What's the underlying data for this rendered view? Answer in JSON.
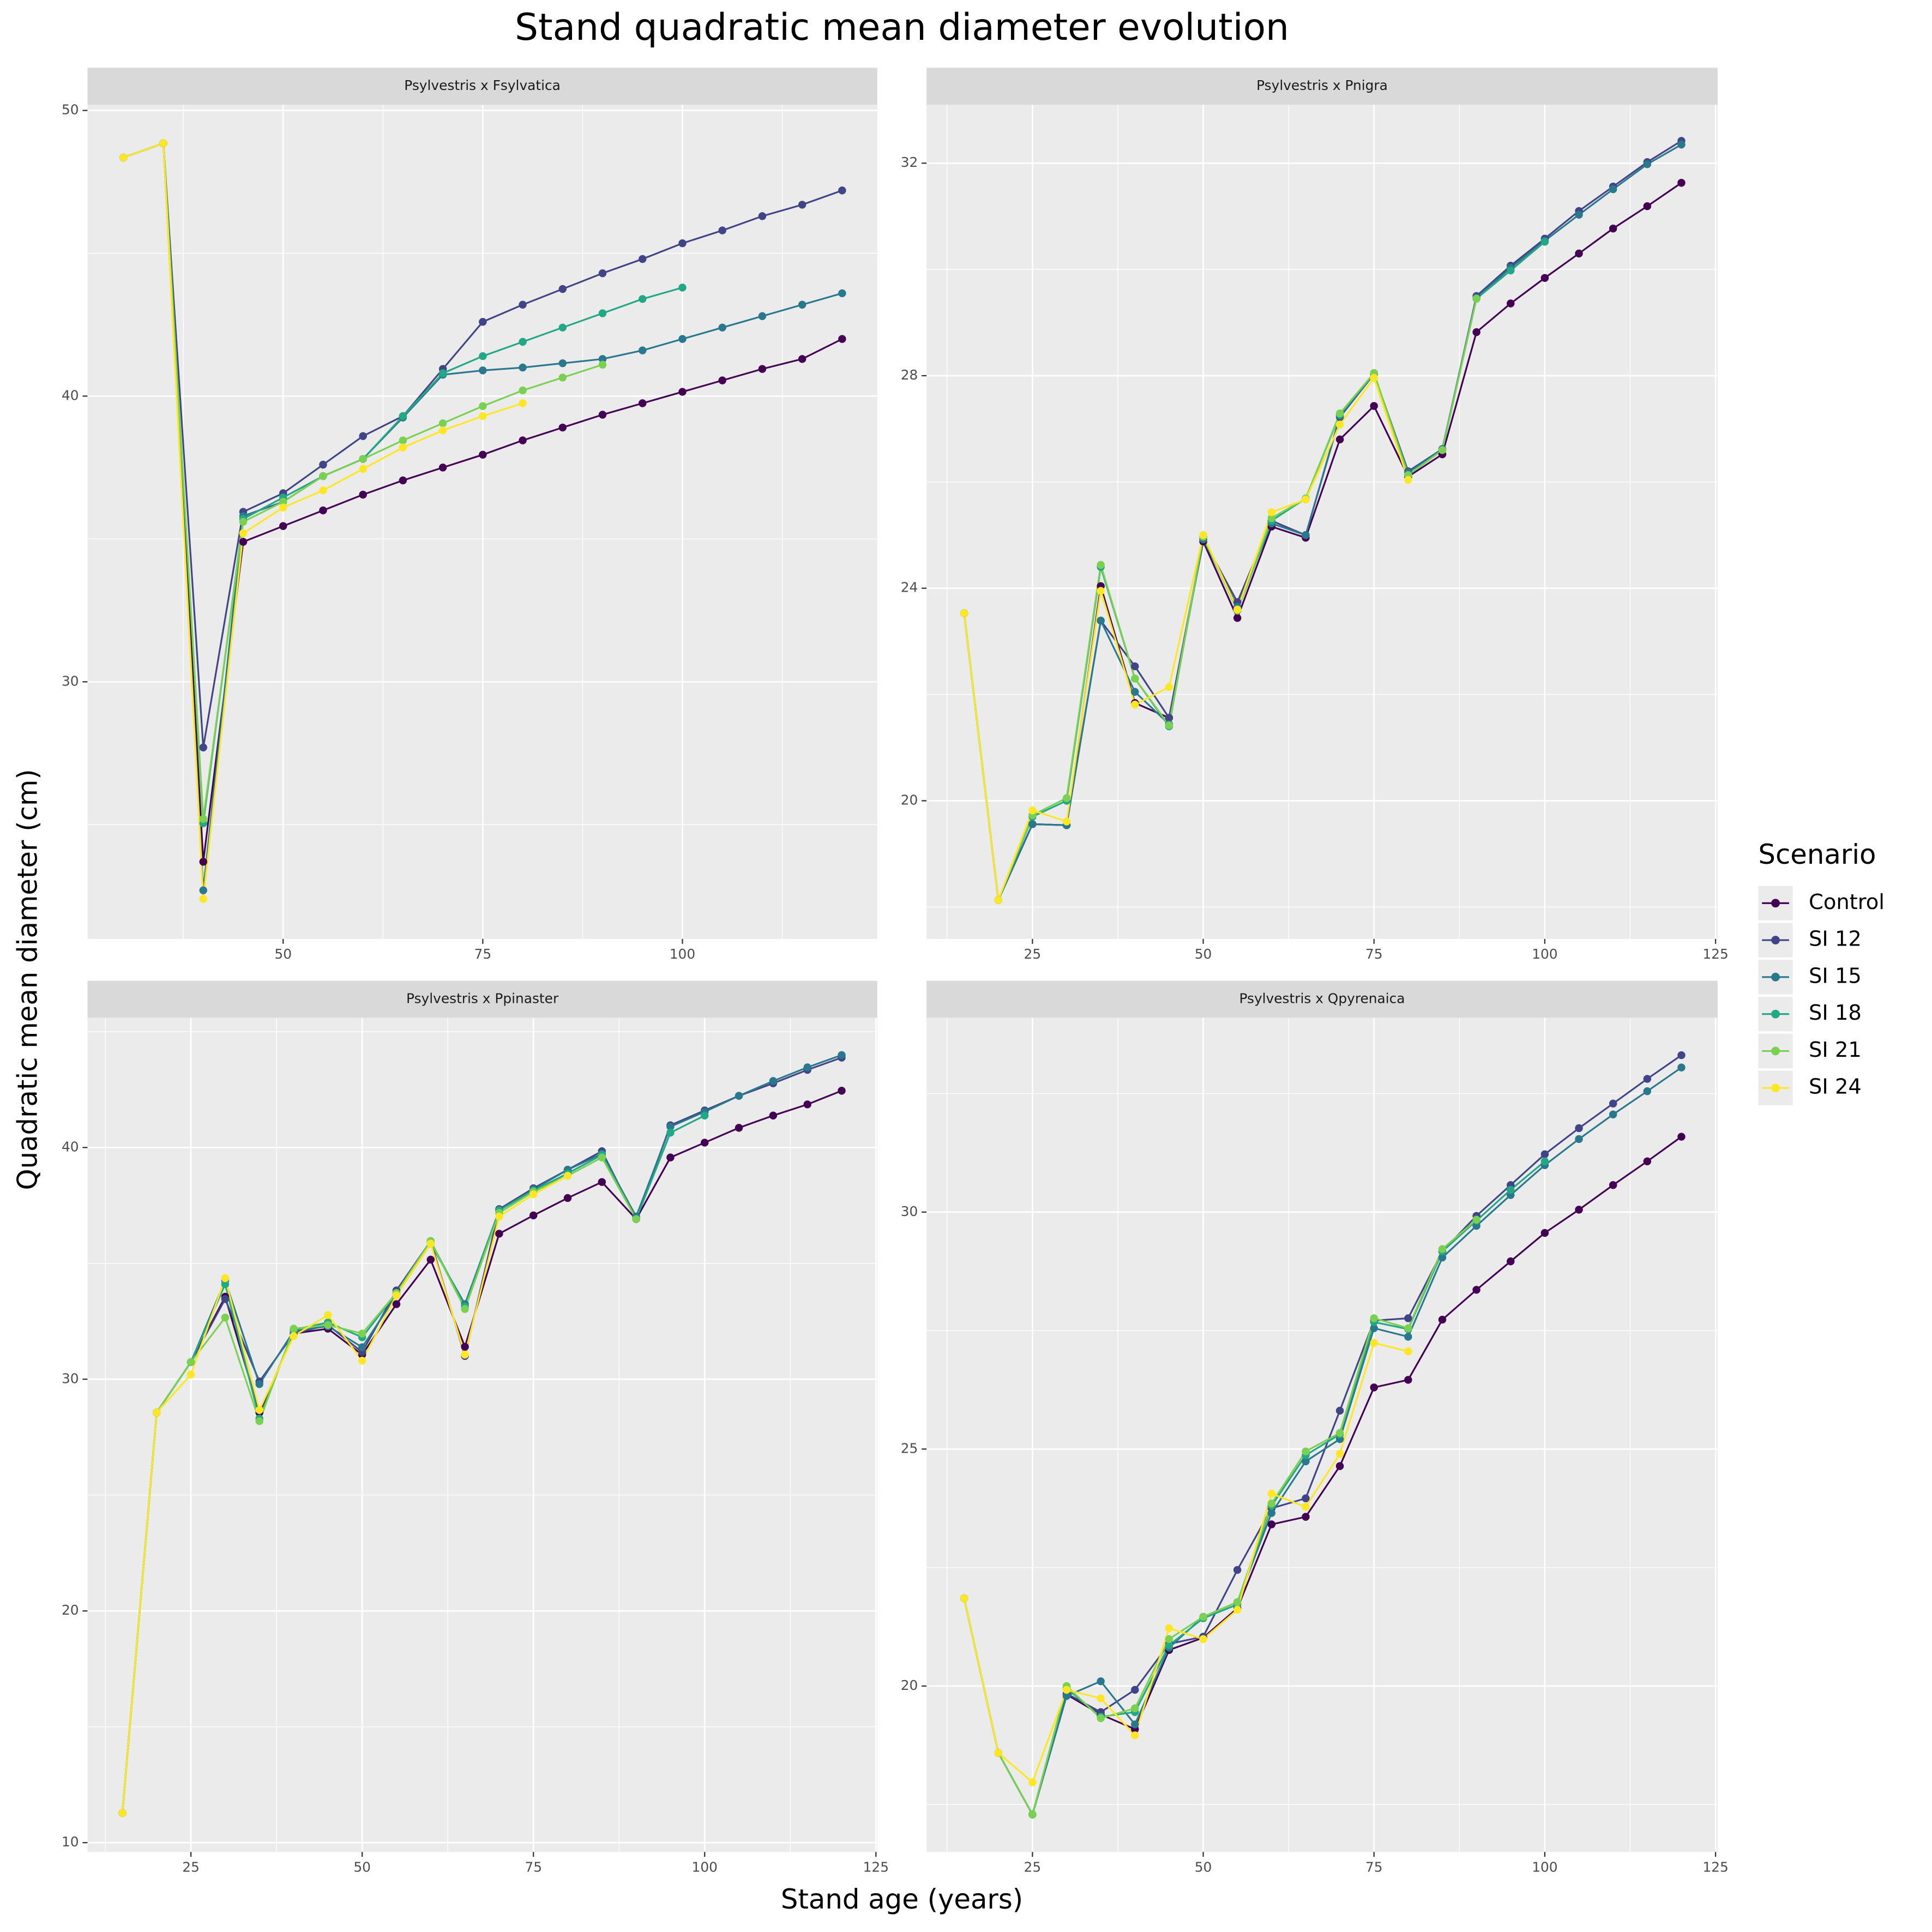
{
  "title": "Stand quadratic mean diameter evolution",
  "xlabel": "Stand age (years)",
  "ylabel": "Quadratic mean diameter (cm)",
  "legend_title": "Scenario",
  "chart_data": [
    {
      "type": "line",
      "title": "Psylvestris x Fsylvatica",
      "x": [
        30,
        35,
        40,
        45,
        50,
        55,
        60,
        65,
        70,
        75,
        80,
        85,
        90,
        95,
        100,
        105,
        110,
        115,
        120
      ],
      "xlim": [
        25.5,
        124.4
      ],
      "ylim": [
        21.0,
        50.2
      ],
      "xticks": [
        50,
        75,
        100
      ],
      "yticks": [
        30,
        40,
        50
      ],
      "grid": true,
      "series": [
        {
          "name": "Control",
          "color": "#440154",
          "values": [
            48.35,
            48.85,
            23.7,
            34.9,
            35.45,
            36.0,
            36.55,
            37.05,
            37.5,
            37.95,
            38.45,
            38.9,
            39.35,
            39.75,
            40.15,
            40.55,
            40.95,
            41.3,
            42.0
          ]
        },
        {
          "name": "SI 12",
          "color": "#414487",
          "values": [
            48.35,
            48.85,
            27.7,
            35.95,
            36.6,
            37.6,
            38.6,
            39.3,
            40.95,
            42.6,
            43.2,
            43.75,
            44.3,
            44.8,
            45.35,
            45.8,
            46.3,
            46.7,
            47.2
          ]
        },
        {
          "name": "SI 15",
          "color": "#2A788E",
          "values": [
            48.35,
            48.85,
            22.7,
            35.8,
            36.3,
            37.2,
            37.8,
            39.25,
            40.75,
            40.9,
            41.0,
            41.15,
            41.3,
            41.6,
            42.0,
            42.4,
            42.8,
            43.2,
            43.6
          ]
        },
        {
          "name": "SI 18",
          "color": "#22A884",
          "values": [
            48.35,
            48.85,
            25.05,
            35.7,
            36.45,
            37.2,
            37.8,
            39.3,
            40.8,
            41.4,
            41.9,
            42.4,
            42.9,
            43.4,
            43.8,
            null,
            null,
            null,
            null
          ]
        },
        {
          "name": "SI 21",
          "color": "#7AD151",
          "values": [
            48.35,
            48.85,
            25.2,
            35.6,
            36.3,
            37.2,
            37.8,
            38.45,
            39.05,
            39.65,
            40.2,
            40.65,
            41.1,
            null,
            null,
            null,
            null,
            null,
            null
          ]
        },
        {
          "name": "SI 24",
          "color": "#FDE725",
          "values": [
            48.35,
            48.85,
            22.4,
            35.2,
            36.1,
            36.7,
            37.45,
            38.2,
            38.8,
            39.3,
            39.75,
            null,
            null,
            null,
            null,
            null,
            null,
            null,
            null
          ]
        }
      ]
    },
    {
      "type": "line",
      "title": "Psylvestris x Pnigra",
      "x": [
        15,
        20,
        25,
        30,
        35,
        40,
        45,
        50,
        55,
        60,
        65,
        70,
        75,
        80,
        85,
        90,
        95,
        100,
        105,
        110,
        115,
        120
      ],
      "xlim": [
        9.5,
        125.3
      ],
      "ylim": [
        17.4,
        33.1
      ],
      "xticks": [
        25,
        50,
        75,
        100,
        125
      ],
      "yticks": [
        20,
        24,
        28,
        32
      ],
      "grid": true,
      "series": [
        {
          "name": "Control",
          "color": "#440154",
          "values": [
            23.53,
            18.13,
            19.56,
            19.54,
            24.04,
            21.84,
            21.56,
            24.88,
            23.44,
            25.16,
            24.95,
            26.8,
            27.43,
            26.1,
            26.52,
            28.82,
            29.36,
            29.84,
            30.3,
            30.77,
            31.19,
            31.63
          ]
        },
        {
          "name": "SI 12",
          "color": "#414487",
          "values": [
            23.53,
            18.13,
            19.56,
            19.54,
            23.39,
            22.53,
            21.56,
            24.92,
            23.74,
            25.27,
            25.0,
            27.22,
            28.03,
            26.2,
            26.62,
            29.5,
            30.07,
            30.58,
            31.1,
            31.56,
            32.02,
            32.42
          ]
        },
        {
          "name": "SI 15",
          "color": "#2A788E",
          "values": [
            23.53,
            18.13,
            19.56,
            19.54,
            23.39,
            22.05,
            21.44,
            24.92,
            23.65,
            25.22,
            25.0,
            27.24,
            28.03,
            26.18,
            26.62,
            29.47,
            30.03,
            30.54,
            31.03,
            31.51,
            31.98,
            32.35
          ]
        },
        {
          "name": "SI 18",
          "color": "#22A884",
          "values": [
            23.53,
            18.13,
            19.7,
            20.0,
            24.4,
            22.3,
            21.4,
            24.97,
            23.58,
            25.27,
            25.69,
            27.27,
            28.05,
            26.13,
            26.6,
            29.45,
            29.98,
            30.52,
            null,
            null,
            null,
            null
          ]
        },
        {
          "name": "SI 21",
          "color": "#7AD151",
          "values": [
            23.53,
            18.13,
            19.73,
            20.05,
            24.44,
            22.3,
            21.42,
            24.97,
            23.58,
            25.32,
            25.69,
            27.29,
            28.05,
            26.13,
            26.6,
            29.45,
            null,
            null,
            null,
            null,
            null,
            null
          ]
        },
        {
          "name": "SI 24",
          "color": "#FDE725",
          "values": [
            23.53,
            18.13,
            19.82,
            19.61,
            23.95,
            21.81,
            22.14,
            25.0,
            23.6,
            25.43,
            25.67,
            27.08,
            27.96,
            26.04,
            null,
            null,
            null,
            null,
            null,
            null,
            null,
            null
          ]
        }
      ]
    },
    {
      "type": "line",
      "title": "Psylvestris x Ppinaster",
      "x": [
        15,
        20,
        25,
        30,
        35,
        40,
        45,
        50,
        55,
        60,
        65,
        70,
        75,
        80,
        85,
        90,
        95,
        100,
        105,
        110,
        115,
        120
      ],
      "xlim": [
        9.9,
        125.2
      ],
      "ylim": [
        9.6,
        45.6
      ],
      "xticks": [
        25,
        50,
        75,
        100,
        125
      ],
      "yticks": [
        10,
        20,
        30,
        40
      ],
      "grid": true,
      "series": [
        {
          "name": "Control",
          "color": "#440154",
          "values": [
            11.28,
            28.56,
            30.74,
            33.56,
            28.56,
            31.97,
            32.18,
            31.06,
            33.24,
            35.16,
            31.4,
            36.28,
            37.07,
            37.82,
            38.51,
            36.91,
            39.57,
            40.21,
            40.85,
            41.38,
            41.86,
            42.45
          ]
        },
        {
          "name": "SI 12",
          "color": "#414487",
          "values": [
            11.28,
            28.56,
            30.74,
            33.46,
            29.9,
            31.97,
            32.34,
            31.17,
            33.83,
            35.96,
            31.0,
            37.34,
            38.24,
            39.04,
            39.84,
            36.91,
            40.96,
            41.6,
            42.23,
            42.77,
            43.35,
            43.88
          ]
        },
        {
          "name": "SI 15",
          "color": "#2A788E",
          "values": [
            11.28,
            28.56,
            30.74,
            34.26,
            29.79,
            32.07,
            32.29,
            31.38,
            33.62,
            35.85,
            33.24,
            37.29,
            38.19,
            39.04,
            39.73,
            37.02,
            40.9,
            41.54,
            42.23,
            42.87,
            43.46,
            43.99
          ]
        },
        {
          "name": "SI 18",
          "color": "#22A884",
          "values": [
            11.28,
            28.56,
            30.74,
            34.1,
            28.3,
            32.13,
            32.45,
            31.81,
            33.72,
            35.96,
            33.14,
            37.29,
            38.14,
            38.88,
            39.68,
            36.91,
            40.64,
            41.38,
            null,
            null,
            null,
            null
          ]
        },
        {
          "name": "SI 21",
          "color": "#7AD151",
          "values": [
            11.28,
            28.56,
            30.74,
            32.66,
            28.19,
            32.18,
            32.34,
            31.97,
            33.72,
            35.96,
            33.03,
            37.18,
            38.09,
            38.78,
            39.57,
            36.91,
            null,
            null,
            null,
            null,
            null,
            null
          ]
        },
        {
          "name": "SI 24",
          "color": "#FDE725",
          "values": [
            11.28,
            28.56,
            30.2,
            34.36,
            28.67,
            31.86,
            32.77,
            30.8,
            33.62,
            35.85,
            31.06,
            37.02,
            37.98,
            38.78,
            null,
            null,
            null,
            null,
            null,
            null,
            null,
            null
          ]
        }
      ]
    },
    {
      "type": "line",
      "title": "Psylvestris x Qpyrenaica",
      "x": [
        15,
        20,
        25,
        30,
        35,
        40,
        45,
        50,
        55,
        60,
        65,
        70,
        75,
        80,
        85,
        90,
        95,
        100,
        105,
        110,
        115,
        120
      ],
      "xlim": [
        9.5,
        125.3
      ],
      "ylim": [
        16.5,
        34.1
      ],
      "xticks": [
        25,
        50,
        75,
        100,
        125
      ],
      "yticks": [
        20,
        25,
        30
      ],
      "grid": true,
      "series": [
        {
          "name": "Control",
          "color": "#440154",
          "values": [
            21.85,
            18.59,
            17.29,
            19.82,
            19.4,
            19.09,
            20.76,
            21.02,
            21.64,
            23.41,
            23.57,
            24.64,
            26.3,
            26.46,
            27.73,
            28.36,
            28.96,
            29.56,
            30.05,
            30.57,
            31.07,
            31.59
          ]
        },
        {
          "name": "SI 12",
          "color": "#414487",
          "values": [
            21.85,
            18.59,
            17.29,
            19.84,
            19.45,
            19.92,
            20.89,
            21.04,
            22.45,
            23.75,
            23.96,
            25.81,
            27.71,
            27.76,
            29.17,
            29.92,
            30.57,
            31.22,
            31.77,
            32.29,
            32.81,
            33.31
          ]
        },
        {
          "name": "SI 15",
          "color": "#2A788E",
          "values": [
            21.85,
            18.59,
            17.29,
            19.79,
            20.1,
            19.19,
            20.81,
            21.46,
            21.77,
            23.65,
            24.74,
            25.21,
            27.55,
            27.37,
            29.04,
            29.71,
            30.36,
            30.99,
            31.54,
            32.06,
            32.55,
            33.05
          ]
        },
        {
          "name": "SI 18",
          "color": "#22A884",
          "values": [
            21.85,
            18.59,
            17.29,
            19.95,
            19.35,
            19.45,
            20.86,
            21.43,
            21.72,
            23.8,
            24.87,
            25.31,
            27.68,
            27.53,
            29.17,
            29.82,
            30.47,
            31.07,
            null,
            null,
            null,
            null
          ]
        },
        {
          "name": "SI 21",
          "color": "#7AD151",
          "values": [
            21.85,
            18.59,
            17.29,
            20.0,
            19.32,
            19.53,
            20.99,
            21.46,
            21.77,
            23.85,
            24.95,
            25.34,
            27.76,
            27.55,
            29.22,
            29.84,
            null,
            null,
            null,
            null,
            null,
            null
          ]
        },
        {
          "name": "SI 24",
          "color": "#FDE725",
          "values": [
            21.85,
            18.59,
            17.97,
            19.92,
            19.74,
            18.96,
            21.22,
            20.99,
            21.61,
            24.06,
            23.78,
            24.9,
            27.24,
            27.06,
            null,
            null,
            null,
            null,
            null,
            null,
            null,
            null
          ]
        }
      ]
    }
  ]
}
